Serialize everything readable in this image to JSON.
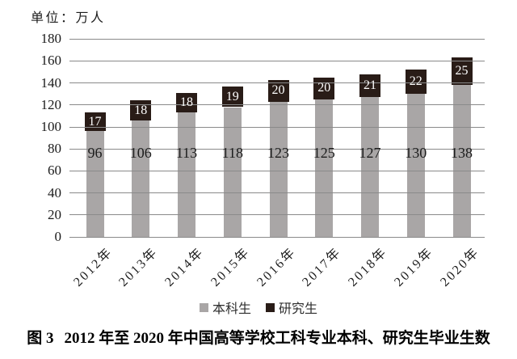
{
  "figure": {
    "caption_prefix": "图 3",
    "caption_text": "2012 年至 2020 年中国高等学校工科专业本科、研究生毕业生数"
  },
  "chart_data": {
    "type": "bar",
    "stacked": true,
    "unit_label": "单位：万人",
    "categories": [
      "2012年",
      "2013年",
      "2014年",
      "2015年",
      "2016年",
      "2017年",
      "2018年",
      "2019年",
      "2020年"
    ],
    "series": [
      {
        "name": "本科生",
        "values": [
          96,
          106,
          113,
          118,
          123,
          125,
          127,
          130,
          138
        ],
        "color": "#a9a6a6",
        "label_color": "#1c1c1c"
      },
      {
        "name": "研究生",
        "values": [
          17,
          18,
          18,
          19,
          20,
          20,
          21,
          22,
          25
        ],
        "color": "#291c17",
        "label_color": "#ffffff"
      }
    ],
    "ylim": [
      0,
      180
    ],
    "ytick_step": 20,
    "grid": true,
    "gridline_color": "#8a8a8a",
    "grid_over_bars": true,
    "legend_position": "bottom-center",
    "xtick_rotation": -45
  }
}
